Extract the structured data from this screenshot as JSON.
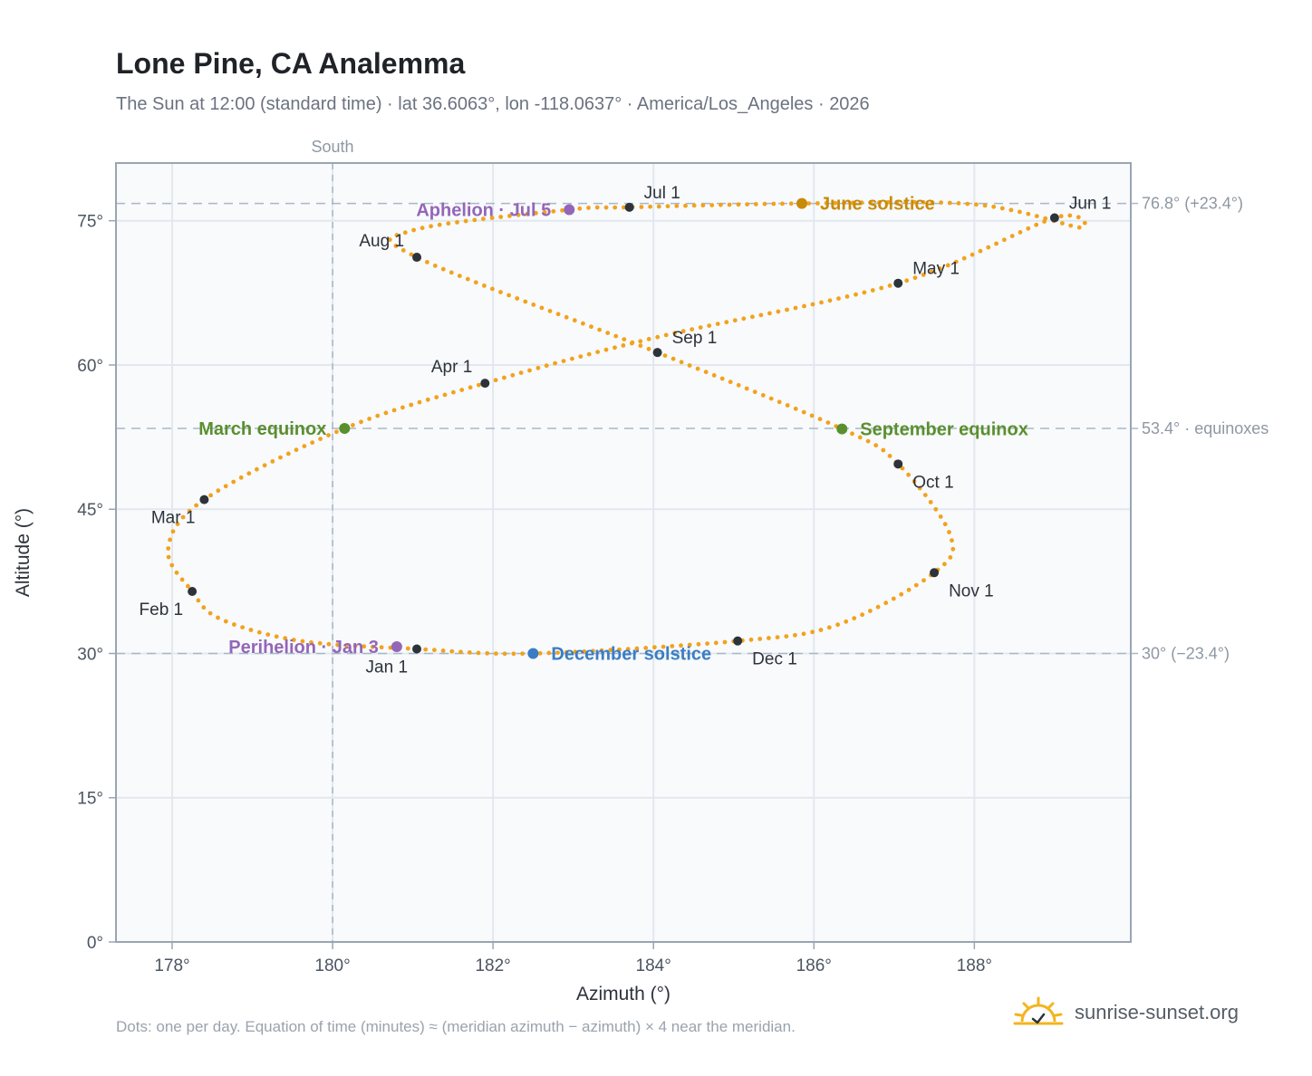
{
  "header": {
    "title": "Lone Pine, CA Analemma",
    "subtitle": "The Sun at 12:00 (standard time) · lat 36.6063°, lon -118.0637° · America/Los_Angeles · 2026"
  },
  "footer": {
    "note": "Dots: one per day. Equation of time (minutes) ≈ (meridian azimuth − azimuth) × 4 near the meridian.",
    "brand": "sunrise-sunset.org",
    "brand_icon": "sun-check-icon"
  },
  "chart_data": {
    "type": "scatter",
    "xlabel": "Azimuth (°)",
    "ylabel": "Altitude (°)",
    "xlim": [
      177.3,
      189.95
    ],
    "ylim": [
      0,
      81
    ],
    "xticks": [
      178,
      180,
      182,
      184,
      186,
      188
    ],
    "xtick_labels": [
      "178°",
      "180°",
      "182°",
      "184°",
      "186°",
      "188°"
    ],
    "yticks": [
      0,
      15,
      30,
      45,
      60,
      75
    ],
    "ytick_labels": [
      "0°",
      "15°",
      "30°",
      "45°",
      "60°",
      "75°"
    ],
    "grid": true,
    "meridian": {
      "x": 180,
      "label": "South"
    },
    "reference_lines": [
      {
        "y": 76.8,
        "label": "76.8° (+23.4°)"
      },
      {
        "y": 53.4,
        "label": "53.4° · equinoxes"
      },
      {
        "y": 30.0,
        "label": "30° (−23.4°)"
      }
    ],
    "path_control_points": [
      [
        181.05,
        30.47
      ],
      [
        179.6,
        31.3
      ],
      [
        178.6,
        33.6
      ],
      [
        178.25,
        36.45
      ],
      [
        177.95,
        40.8
      ],
      [
        178.4,
        46.0
      ],
      [
        180.15,
        53.4
      ],
      [
        181.9,
        58.1
      ],
      [
        184.0,
        62.8
      ],
      [
        187.05,
        68.5
      ],
      [
        189.0,
        75.3
      ],
      [
        189.3,
        74.3
      ],
      [
        188.0,
        76.7
      ],
      [
        185.9,
        76.8
      ],
      [
        183.7,
        76.4
      ],
      [
        182.95,
        76.15
      ],
      [
        181.0,
        74.0
      ],
      [
        181.05,
        71.2
      ],
      [
        184.05,
        61.3
      ],
      [
        186.35,
        53.35
      ],
      [
        187.05,
        49.7
      ],
      [
        187.7,
        42.3
      ],
      [
        187.5,
        38.4
      ],
      [
        186.3,
        33.0
      ],
      [
        185.05,
        31.3
      ],
      [
        182.5,
        30.0
      ],
      [
        181.05,
        30.47
      ]
    ],
    "month_markers": [
      {
        "label": "Jan 1",
        "azimuth": 181.05,
        "altitude": 30.47,
        "pos": "below-left"
      },
      {
        "label": "Feb 1",
        "azimuth": 178.25,
        "altitude": 36.45,
        "pos": "below-left"
      },
      {
        "label": "Mar 1",
        "azimuth": 178.4,
        "altitude": 46.0,
        "pos": "below-left"
      },
      {
        "label": "Apr 1",
        "azimuth": 181.9,
        "altitude": 58.1,
        "pos": "above-left"
      },
      {
        "label": "May 1",
        "azimuth": 187.05,
        "altitude": 68.5,
        "pos": "above-right"
      },
      {
        "label": "Jun 1",
        "azimuth": 189.0,
        "altitude": 75.3,
        "pos": "above-right"
      },
      {
        "label": "Jul 1",
        "azimuth": 183.7,
        "altitude": 76.4,
        "pos": "above-right"
      },
      {
        "label": "Aug 1",
        "azimuth": 181.05,
        "altitude": 71.2,
        "pos": "above-left"
      },
      {
        "label": "Sep 1",
        "azimuth": 184.05,
        "altitude": 61.3,
        "pos": "above-right"
      },
      {
        "label": "Oct 1",
        "azimuth": 187.05,
        "altitude": 49.7,
        "pos": "below-right"
      },
      {
        "label": "Nov 1",
        "azimuth": 187.5,
        "altitude": 38.4,
        "pos": "below-right"
      },
      {
        "label": "Dec 1",
        "azimuth": 185.05,
        "altitude": 31.3,
        "pos": "below-right"
      }
    ],
    "events": [
      {
        "label": "June solstice",
        "azimuth": 185.85,
        "altitude": 76.8,
        "color": "#c98a0a",
        "pos": "right"
      },
      {
        "label": "December solstice",
        "azimuth": 182.5,
        "altitude": 30.0,
        "color": "#3b7dc4",
        "pos": "right"
      },
      {
        "label": "March equinox",
        "azimuth": 180.15,
        "altitude": 53.4,
        "color": "#5a8f2e",
        "pos": "left"
      },
      {
        "label": "September equinox",
        "azimuth": 186.35,
        "altitude": 53.35,
        "color": "#5a8f2e",
        "pos": "right"
      },
      {
        "label": "Aphelion · Jul 5",
        "azimuth": 182.95,
        "altitude": 76.15,
        "color": "#9466b8",
        "pos": "left"
      },
      {
        "label": "Perihelion · Jan 3",
        "azimuth": 180.8,
        "altitude": 30.7,
        "color": "#9466b8",
        "pos": "left"
      }
    ],
    "colors": {
      "path": "#f2a21c",
      "marker": "#2d333b",
      "plot_bg": "#f8fafc",
      "grid": "#e3e8ee",
      "frame": "#9aa5b3",
      "reference": "#a9b7c6"
    }
  }
}
